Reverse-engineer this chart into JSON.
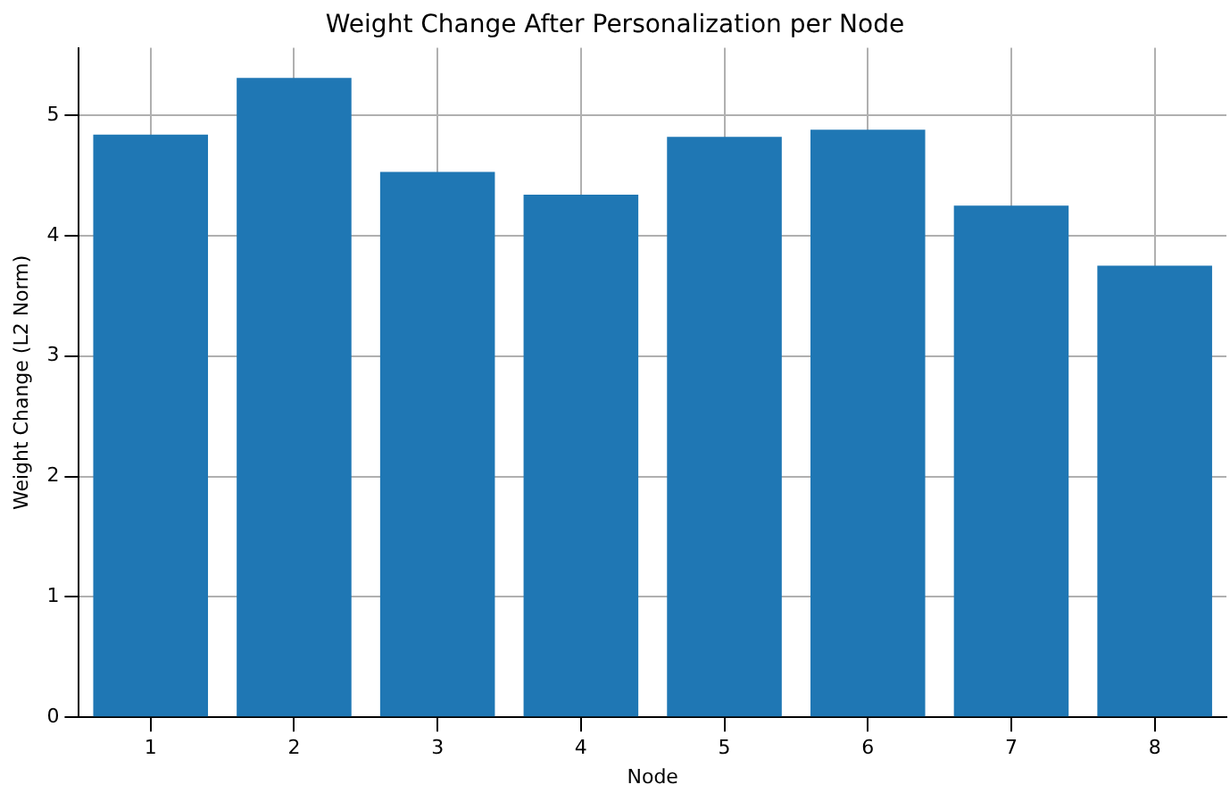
{
  "chart_data": {
    "type": "bar",
    "title": "Weight Change After Personalization per Node",
    "xlabel": "Node",
    "ylabel": "Weight Change (L2 Norm)",
    "categories": [
      "1",
      "2",
      "3",
      "4",
      "5",
      "6",
      "7",
      "8"
    ],
    "values": [
      4.84,
      5.31,
      4.53,
      4.34,
      4.82,
      4.88,
      4.25,
      3.75
    ],
    "color": "#1f77b4",
    "ylim": [
      0,
      5.56
    ],
    "yticks": [
      0,
      1,
      2,
      3,
      4,
      5
    ],
    "grid": true
  }
}
